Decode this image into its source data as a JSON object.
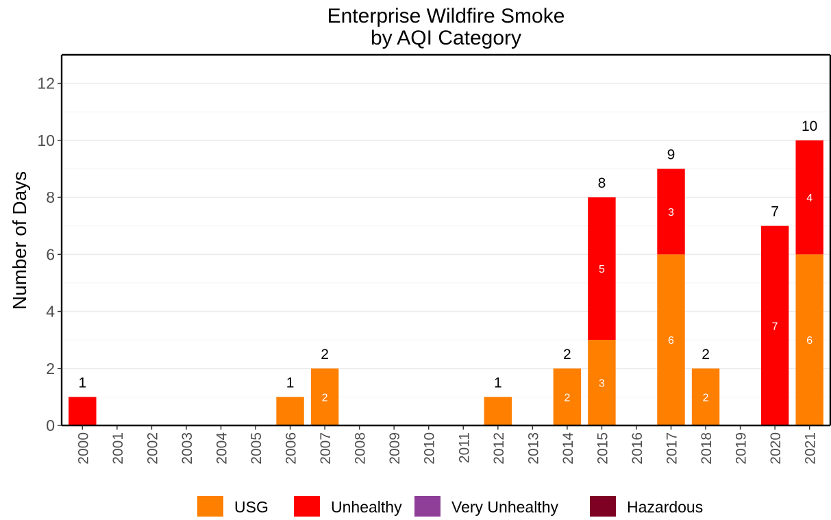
{
  "chart_data": {
    "type": "bar",
    "stacked": true,
    "title_line1": "Enterprise Wildfire Smoke",
    "title_line2": "by AQI Category",
    "xlabel": "",
    "ylabel": "Number of Days",
    "ylim": [
      0,
      13
    ],
    "yticks": [
      "0",
      "2",
      "4",
      "6",
      "8",
      "10",
      "12"
    ],
    "categories": [
      "2000",
      "2001",
      "2002",
      "2003",
      "2004",
      "2005",
      "2006",
      "2007",
      "2008",
      "2009",
      "2010",
      "2011",
      "2012",
      "2013",
      "2014",
      "2015",
      "2016",
      "2017",
      "2018",
      "2019",
      "2020",
      "2021"
    ],
    "series": [
      {
        "name": "USG",
        "color": "#ff7f00",
        "values": [
          0,
          0,
          0,
          0,
          0,
          0,
          1,
          2,
          0,
          0,
          0,
          0,
          1,
          0,
          2,
          3,
          0,
          6,
          2,
          0,
          0,
          6
        ]
      },
      {
        "name": "Unhealthy",
        "color": "#ff0000",
        "values": [
          1,
          0,
          0,
          0,
          0,
          0,
          0,
          0,
          0,
          0,
          0,
          0,
          0,
          0,
          0,
          5,
          0,
          3,
          0,
          0,
          7,
          4
        ]
      },
      {
        "name": "Very Unhealthy",
        "color": "#8f3f97",
        "values": [
          0,
          0,
          0,
          0,
          0,
          0,
          0,
          0,
          0,
          0,
          0,
          0,
          0,
          0,
          0,
          0,
          0,
          0,
          0,
          0,
          0,
          0
        ]
      },
      {
        "name": "Hazardous",
        "color": "#7e0023",
        "values": [
          0,
          0,
          0,
          0,
          0,
          0,
          0,
          0,
          0,
          0,
          0,
          0,
          0,
          0,
          0,
          0,
          0,
          0,
          0,
          0,
          0,
          0
        ]
      }
    ],
    "totals": [
      "1",
      "",
      "",
      "",
      "",
      "",
      "1",
      "2",
      "",
      "",
      "",
      "",
      "1",
      "",
      "2",
      "8",
      "",
      "9",
      "2",
      "",
      "7",
      "10"
    ],
    "segment_labels": {
      "USG": [
        "",
        "",
        "",
        "",
        "",
        "",
        "",
        "2",
        "",
        "",
        "",
        "",
        "",
        "",
        "2",
        "3",
        "",
        "6",
        "2",
        "",
        "",
        "6"
      ],
      "Unhealthy": [
        "",
        "",
        "",
        "",
        "",
        "",
        "",
        "",
        "",
        "",
        "",
        "",
        "",
        "",
        "",
        "5",
        "",
        "3",
        "",
        "",
        "7",
        "4"
      ]
    },
    "grid": true,
    "legend_position": "bottom"
  }
}
